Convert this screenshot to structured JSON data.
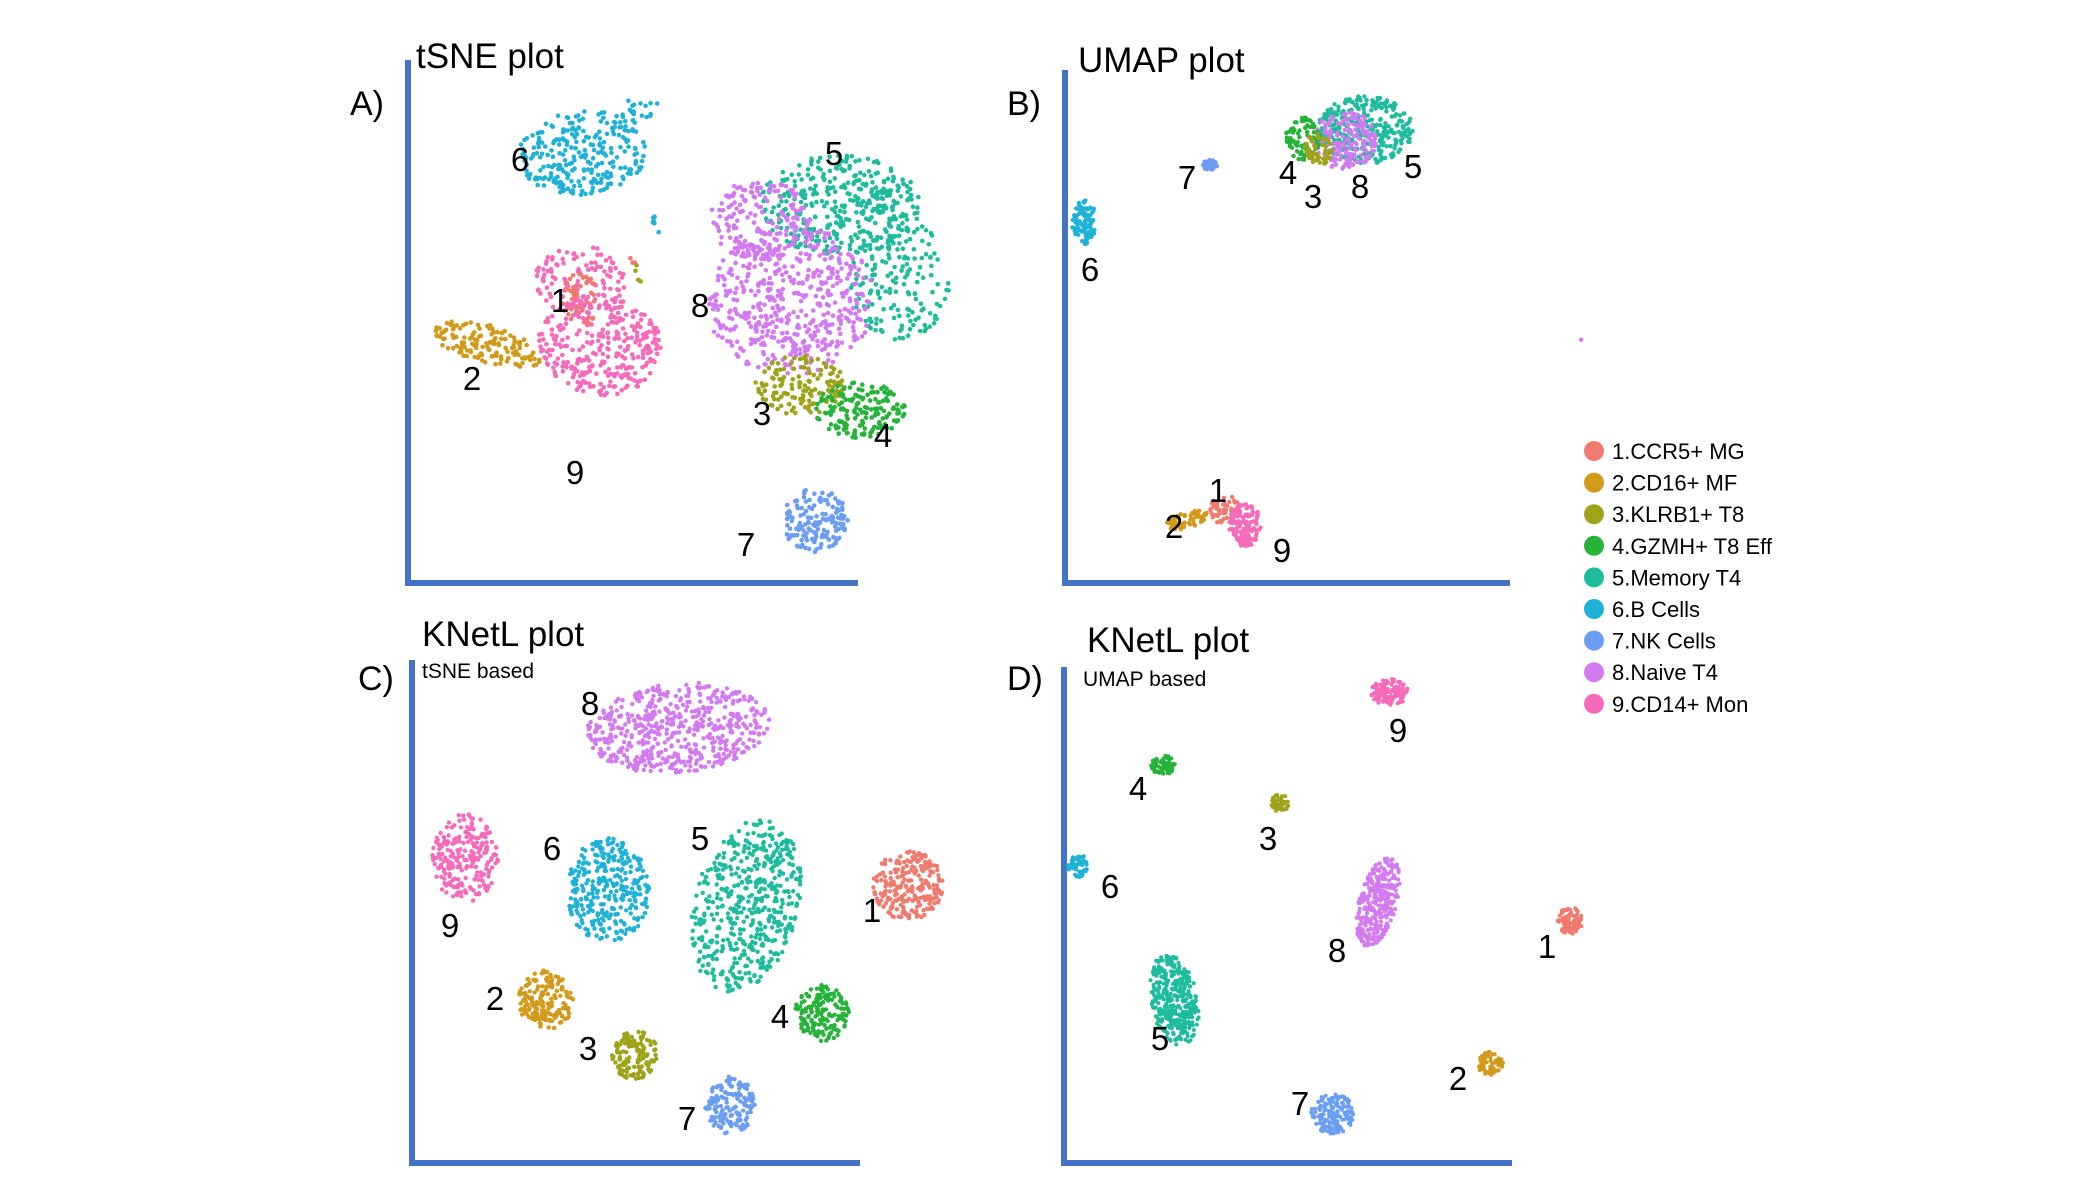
{
  "chart_data": [
    {
      "type": "scatter",
      "panel_letter": "A)",
      "title": "tSNE plot",
      "subtitle": "",
      "point_labels": [
        "1",
        "2",
        "3",
        "4",
        "5",
        "6",
        "7",
        "8",
        "9"
      ]
    },
    {
      "type": "scatter",
      "panel_letter": "B)",
      "title": "UMAP plot",
      "subtitle": "",
      "point_labels": [
        "1",
        "2",
        "3",
        "4",
        "5",
        "6",
        "7",
        "8",
        "9"
      ]
    },
    {
      "type": "scatter",
      "panel_letter": "C)",
      "title": "KNetL plot",
      "subtitle": "tSNE based",
      "point_labels": [
        "1",
        "2",
        "3",
        "4",
        "5",
        "6",
        "7",
        "8",
        "9"
      ]
    },
    {
      "type": "scatter",
      "panel_letter": "D)",
      "title": "KNetL plot",
      "subtitle": "UMAP based",
      "point_labels": [
        "1",
        "2",
        "3",
        "4",
        "5",
        "6",
        "7",
        "8",
        "9"
      ]
    }
  ],
  "legend": {
    "position": "right",
    "items": [
      {
        "label": "1.CCR5+ MG",
        "color": "#f07a6e"
      },
      {
        "label": "2.CD16+ MF",
        "color": "#d19a1a"
      },
      {
        "label": "3.KLRB1+ T8",
        "color": "#9fa31a"
      },
      {
        "label": "4.GZMH+ T8 Eff",
        "color": "#26b33a"
      },
      {
        "label": "5.Memory T4",
        "color": "#1ebc9c"
      },
      {
        "label": "6.B Cells",
        "color": "#1fb2d6"
      },
      {
        "label": "7.NK Cells",
        "color": "#6b9ef2"
      },
      {
        "label": "8.Naive T4",
        "color": "#d27bf0"
      },
      {
        "label": "9.CD14+ Mon",
        "color": "#f56bb9"
      }
    ]
  }
}
